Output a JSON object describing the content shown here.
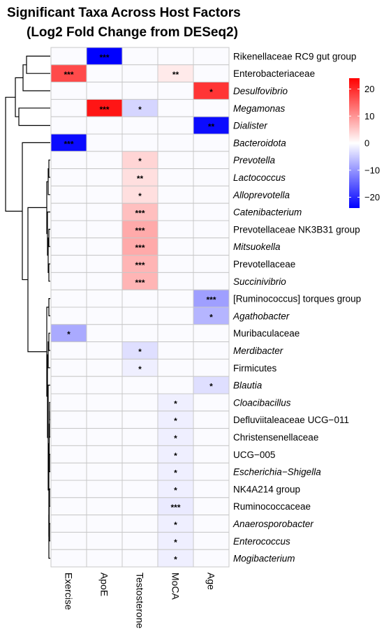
{
  "chart_data": {
    "type": "heatmap",
    "title_line1": "Significant Taxa Across Host Factors",
    "title_line2": "(Log2 Fold Change from DESeq2)",
    "columns": [
      "Exercise",
      "ApoE",
      "Testosterone",
      "MoCA",
      "Age"
    ],
    "rows": [
      {
        "label": "Rikenellaceae RC9 gut group",
        "italic": false,
        "values": [
          0,
          -24,
          0,
          0,
          0
        ],
        "stars": [
          "",
          "***",
          "",
          "",
          ""
        ]
      },
      {
        "label": "Enterobacteriaceae",
        "italic": false,
        "values": [
          17,
          0,
          0,
          2,
          0
        ],
        "stars": [
          "***",
          "",
          "",
          "**",
          ""
        ]
      },
      {
        "label": "Desulfovibrio",
        "italic": true,
        "values": [
          0,
          0,
          0,
          0,
          19
        ],
        "stars": [
          "",
          "",
          "",
          "",
          "*"
        ]
      },
      {
        "label": "Megamonas",
        "italic": true,
        "values": [
          0,
          22,
          -4,
          0,
          0
        ],
        "stars": [
          "",
          "***",
          "*",
          "",
          ""
        ]
      },
      {
        "label": "Dialister",
        "italic": true,
        "values": [
          0,
          0,
          0,
          0,
          -23
        ],
        "stars": [
          "",
          "",
          "",
          "",
          "**"
        ]
      },
      {
        "label": "Bacteroidota",
        "italic": true,
        "values": [
          -23,
          0,
          0,
          0,
          0
        ],
        "stars": [
          "***",
          "",
          "",
          "",
          ""
        ]
      },
      {
        "label": "Prevotella",
        "italic": true,
        "values": [
          0,
          0,
          4,
          0,
          0
        ],
        "stars": [
          "",
          "",
          "*",
          "",
          ""
        ]
      },
      {
        "label": "Lactococcus",
        "italic": true,
        "values": [
          0,
          0,
          3,
          0,
          0
        ],
        "stars": [
          "",
          "",
          "**",
          "",
          ""
        ]
      },
      {
        "label": "Alloprevotella",
        "italic": true,
        "values": [
          0,
          0,
          3,
          0,
          0
        ],
        "stars": [
          "",
          "",
          "*",
          "",
          ""
        ]
      },
      {
        "label": "Catenibacterium",
        "italic": true,
        "values": [
          0,
          0,
          6,
          0,
          0
        ],
        "stars": [
          "",
          "",
          "***",
          "",
          ""
        ]
      },
      {
        "label": "Prevotellaceae NK3B31 group",
        "italic": false,
        "values": [
          0,
          0,
          8,
          0,
          0
        ],
        "stars": [
          "",
          "",
          "***",
          "",
          ""
        ]
      },
      {
        "label": "Mitsuokella",
        "italic": true,
        "values": [
          0,
          0,
          8,
          0,
          0
        ],
        "stars": [
          "",
          "",
          "***",
          "",
          ""
        ]
      },
      {
        "label": "Prevotellaceae",
        "italic": false,
        "values": [
          0,
          0,
          7,
          0,
          0
        ],
        "stars": [
          "",
          "",
          "***",
          "",
          ""
        ]
      },
      {
        "label": "Succinivibrio",
        "italic": true,
        "values": [
          0,
          0,
          7,
          0,
          0
        ],
        "stars": [
          "",
          "",
          "***",
          "",
          ""
        ]
      },
      {
        "label": "[Ruminococcus] torques group",
        "italic": false,
        "values": [
          0,
          0,
          0,
          0,
          -9
        ],
        "stars": [
          "",
          "",
          "",
          "",
          "***"
        ]
      },
      {
        "label": "Agathobacter",
        "italic": true,
        "values": [
          0,
          0,
          0,
          0,
          -7
        ],
        "stars": [
          "",
          "",
          "",
          "",
          "*"
        ]
      },
      {
        "label": "Muribaculaceae",
        "italic": false,
        "values": [
          -8,
          0,
          0,
          0,
          0
        ],
        "stars": [
          "*",
          "",
          "",
          "",
          ""
        ]
      },
      {
        "label": "Merdibacter",
        "italic": true,
        "values": [
          0,
          0,
          -3,
          0,
          0
        ],
        "stars": [
          "",
          "",
          "*",
          "",
          ""
        ]
      },
      {
        "label": "Firmicutes",
        "italic": false,
        "values": [
          0,
          0,
          -1.5,
          0,
          0
        ],
        "stars": [
          "",
          "",
          "*",
          "",
          ""
        ]
      },
      {
        "label": "Blautia",
        "italic": true,
        "values": [
          0,
          0,
          0,
          0,
          -3
        ],
        "stars": [
          "",
          "",
          "",
          "",
          "*"
        ]
      },
      {
        "label": "Cloacibacillus",
        "italic": true,
        "values": [
          0,
          0,
          0,
          -1.5,
          0
        ],
        "stars": [
          "",
          "",
          "",
          "*",
          ""
        ]
      },
      {
        "label": "Defluviitaleaceae UCG−011",
        "italic": false,
        "values": [
          0,
          0,
          0,
          -1.5,
          0
        ],
        "stars": [
          "",
          "",
          "",
          "*",
          ""
        ]
      },
      {
        "label": "Christensenellaceae",
        "italic": false,
        "values": [
          0,
          0,
          0,
          -1.5,
          0
        ],
        "stars": [
          "",
          "",
          "",
          "*",
          ""
        ]
      },
      {
        "label": "UCG−005",
        "italic": false,
        "values": [
          0,
          0,
          0,
          -1.5,
          0
        ],
        "stars": [
          "",
          "",
          "",
          "*",
          ""
        ]
      },
      {
        "label": "Escherichia−Shigella",
        "italic": true,
        "values": [
          0,
          0,
          0,
          -1.5,
          0
        ],
        "stars": [
          "",
          "",
          "",
          "*",
          ""
        ]
      },
      {
        "label": "NK4A214 group",
        "italic": false,
        "values": [
          0,
          0,
          0,
          -1.5,
          0
        ],
        "stars": [
          "",
          "",
          "",
          "*",
          ""
        ]
      },
      {
        "label": "Ruminococcaceae",
        "italic": false,
        "values": [
          0,
          0,
          0,
          -2,
          0
        ],
        "stars": [
          "",
          "",
          "",
          "***",
          ""
        ]
      },
      {
        "label": "Anaerosporobacter",
        "italic": true,
        "values": [
          0,
          0,
          0,
          -1.5,
          0
        ],
        "stars": [
          "",
          "",
          "",
          "*",
          ""
        ]
      },
      {
        "label": "Enterococcus",
        "italic": true,
        "values": [
          0,
          0,
          0,
          -1.5,
          0
        ],
        "stars": [
          "",
          "",
          "",
          "*",
          ""
        ]
      },
      {
        "label": "Mogibacterium",
        "italic": true,
        "values": [
          0,
          0,
          0,
          -1.5,
          0
        ],
        "stars": [
          "",
          "",
          "",
          "*",
          ""
        ]
      }
    ],
    "color_scale": {
      "min": -24,
      "max": 24,
      "low_color": "#0000ff",
      "mid_color": "#ffffff",
      "high_color": "#ff0000",
      "ticks": [
        20,
        10,
        0,
        -10,
        -20
      ],
      "tick_labels": [
        "20",
        "10",
        "0",
        "−10",
        "−20"
      ]
    },
    "legend_position": "right",
    "dendrogram": "rows"
  }
}
